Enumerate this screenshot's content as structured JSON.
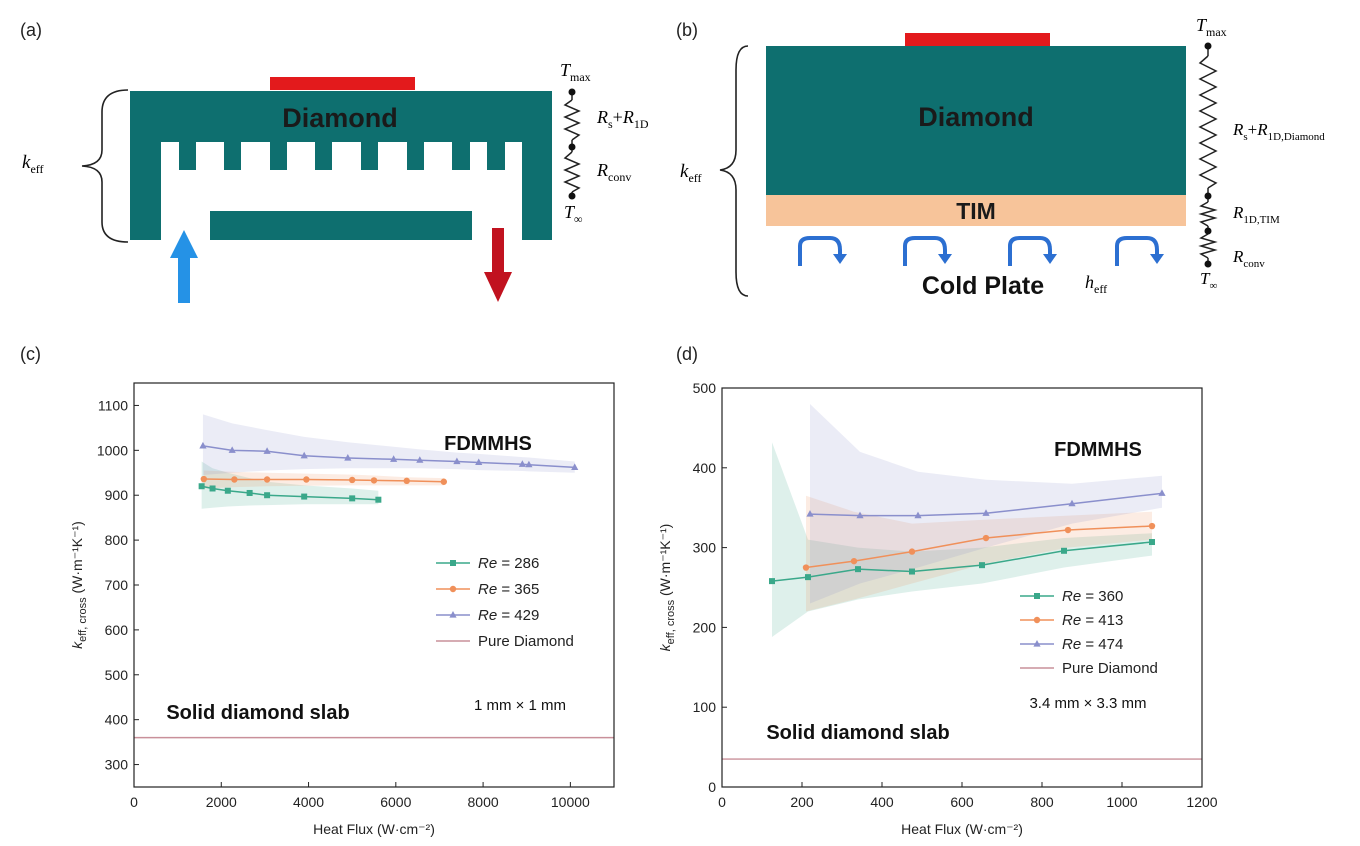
{
  "panel_labels": {
    "a": "(a)",
    "b": "(b)",
    "c": "(c)",
    "d": "(d)"
  },
  "diagram_a": {
    "block_label": "Diamond",
    "k_label": {
      "main": "k",
      "sub": "eff"
    },
    "resistors": [
      {
        "main": "R",
        "sub": "s",
        "mid": "+",
        "main2": "R",
        "sub2": "1D"
      },
      {
        "main": "R",
        "sub": "conv"
      }
    ],
    "t_max": {
      "main": "T",
      "sub": "max"
    },
    "t_inf": {
      "main": "T",
      "sub": "∞"
    }
  },
  "diagram_b": {
    "block_label": "Diamond",
    "tim_label": "TIM",
    "plate_label": "Cold Plate",
    "k_label": {
      "main": "k",
      "sub": "eff"
    },
    "h_label": {
      "main": "h",
      "sub": "eff"
    },
    "resistors": [
      {
        "main": "R",
        "sub": "s",
        "mid": "+",
        "main2": "R",
        "sub2": "1D,Diamond"
      },
      {
        "main": "R",
        "sub": "1D,TIM"
      },
      {
        "main": "R",
        "sub": "conv"
      }
    ],
    "t_max": {
      "main": "T",
      "sub": "max"
    },
    "t_inf": {
      "main": "T",
      "sub": "∞"
    }
  },
  "chart_data": [
    {
      "id": "c",
      "type": "line",
      "xlabel": "Heat Flux (W·cm⁻²)",
      "ylabel": "k_eff, cross (W·m⁻¹K⁻¹)",
      "xlim": [
        0,
        11000
      ],
      "ylim": [
        250,
        1150
      ],
      "xticks": [
        0,
        2000,
        4000,
        6000,
        8000,
        10000
      ],
      "yticks": [
        300,
        400,
        500,
        600,
        700,
        800,
        900,
        1000,
        1100
      ],
      "annotations": {
        "top": "FDMMHS",
        "size": "1 mm × 1 mm",
        "slab": "Solid diamond slab"
      },
      "series": [
        {
          "name": "Re = 286",
          "re": "286",
          "color": "#3aa88a",
          "marker": "square",
          "x": [
            1550,
            1800,
            2150,
            2650,
            3050,
            3900,
            5000,
            5600
          ],
          "y": [
            920,
            915,
            910,
            905,
            900,
            897,
            893,
            890
          ],
          "band_upper": [
            975,
            960,
            950,
            938,
            930,
            922,
            915,
            910
          ],
          "band_lower": [
            870,
            872,
            875,
            877,
            878,
            880,
            880,
            880
          ]
        },
        {
          "name": "Re = 365",
          "re": "365",
          "color": "#f0905a",
          "marker": "circle",
          "x": [
            1600,
            2300,
            3050,
            3950,
            5000,
            5500,
            6250,
            7100
          ],
          "y": [
            936,
            935,
            935,
            935,
            934,
            933,
            932,
            930
          ],
          "band_upper": [
            955,
            952,
            950,
            948,
            946,
            944,
            940,
            938
          ],
          "band_lower": [
            915,
            918,
            920,
            921,
            922,
            922,
            922,
            922
          ]
        },
        {
          "name": "Re = 429",
          "re": "429",
          "color": "#8a8fcc",
          "marker": "triangle",
          "x": [
            1580,
            2250,
            3050,
            3900,
            4900,
            5950,
            6550,
            7400,
            7900,
            8900,
            9050,
            10100
          ],
          "y": [
            1010,
            1000,
            998,
            988,
            983,
            980,
            978,
            975,
            973,
            969,
            968,
            962
          ],
          "band_upper": [
            1080,
            1060,
            1045,
            1030,
            1018,
            1008,
            1002,
            995,
            992,
            985,
            984,
            975
          ],
          "band_lower": [
            945,
            950,
            955,
            958,
            960,
            960,
            960,
            958,
            956,
            954,
            953,
            950
          ]
        },
        {
          "name": "Pure Diamond",
          "color": "#c9909a",
          "marker": "none",
          "constant": 360
        }
      ]
    },
    {
      "id": "d",
      "type": "line",
      "xlabel": "Heat Flux (W·cm⁻²)",
      "ylabel": "k_eff, cross (W·m⁻¹K⁻¹)",
      "xlim": [
        0,
        1200
      ],
      "ylim": [
        0,
        500
      ],
      "xticks": [
        0,
        200,
        400,
        600,
        800,
        1000,
        1200
      ],
      "yticks": [
        0,
        100,
        200,
        300,
        400,
        500
      ],
      "annotations": {
        "top": "FDMMHS",
        "size": "3.4 mm × 3.3 mm",
        "slab": "Solid diamond slab"
      },
      "series": [
        {
          "name": "Re = 360",
          "re": "360",
          "color": "#3aa88a",
          "marker": "square",
          "x": [
            125,
            215,
            340,
            475,
            650,
            855,
            1075
          ],
          "y": [
            258,
            263,
            273,
            270,
            278,
            296,
            307
          ],
          "band_upper": [
            432,
            310,
            300,
            295,
            300,
            312,
            318
          ],
          "band_lower": [
            188,
            220,
            235,
            245,
            255,
            275,
            290
          ]
        },
        {
          "name": "Re = 413",
          "re": "413",
          "color": "#f0905a",
          "marker": "circle",
          "x": [
            210,
            330,
            475,
            660,
            865,
            1075
          ],
          "y": [
            275,
            283,
            295,
            312,
            322,
            327
          ],
          "band_upper": [
            365,
            345,
            330,
            335,
            340,
            345
          ],
          "band_lower": [
            220,
            235,
            255,
            280,
            300,
            310
          ]
        },
        {
          "name": "Re = 474",
          "re": "474",
          "color": "#8a8fcc",
          "marker": "triangle",
          "x": [
            220,
            345,
            490,
            660,
            875,
            1100
          ],
          "y": [
            342,
            340,
            340,
            343,
            355,
            368
          ],
          "band_upper": [
            480,
            420,
            395,
            385,
            380,
            390
          ],
          "band_lower": [
            230,
            255,
            275,
            300,
            330,
            350
          ]
        },
        {
          "name": "Pure Diamond",
          "color": "#c9909a",
          "marker": "none",
          "constant": 35
        }
      ]
    }
  ]
}
